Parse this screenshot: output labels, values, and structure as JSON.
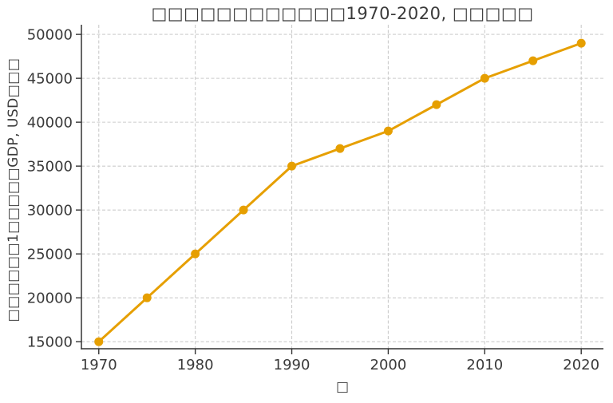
{
  "figure": {
    "background": "#ffffff"
  },
  "chart_data": {
    "type": "line",
    "title": "□□□□□□□□□□□□1970-2020, □□□□□",
    "xlabel": "□",
    "ylabel": "□□□□□□1□□□□□GDP, USD□□□",
    "x": [
      1970,
      1975,
      1980,
      1985,
      1990,
      1995,
      2000,
      2005,
      2010,
      2015,
      2020
    ],
    "y": [
      15000,
      20000,
      25000,
      30000,
      35000,
      37000,
      39000,
      42000,
      45000,
      47000,
      49000
    ],
    "xticks": [
      1970,
      1980,
      1990,
      2000,
      2010,
      2020
    ],
    "yticks": [
      15000,
      20000,
      25000,
      30000,
      35000,
      40000,
      45000,
      50000
    ],
    "xlim": [
      1968.2,
      2022.3
    ],
    "ylim": [
      14200,
      51100
    ],
    "grid": true,
    "grid_style": "dashed",
    "legend": "none",
    "colors": {
      "line": "#E69F00",
      "marker": "#E69F00",
      "grid": "#cccccc",
      "spine": "#333333",
      "text": "#3a3a3a"
    }
  }
}
